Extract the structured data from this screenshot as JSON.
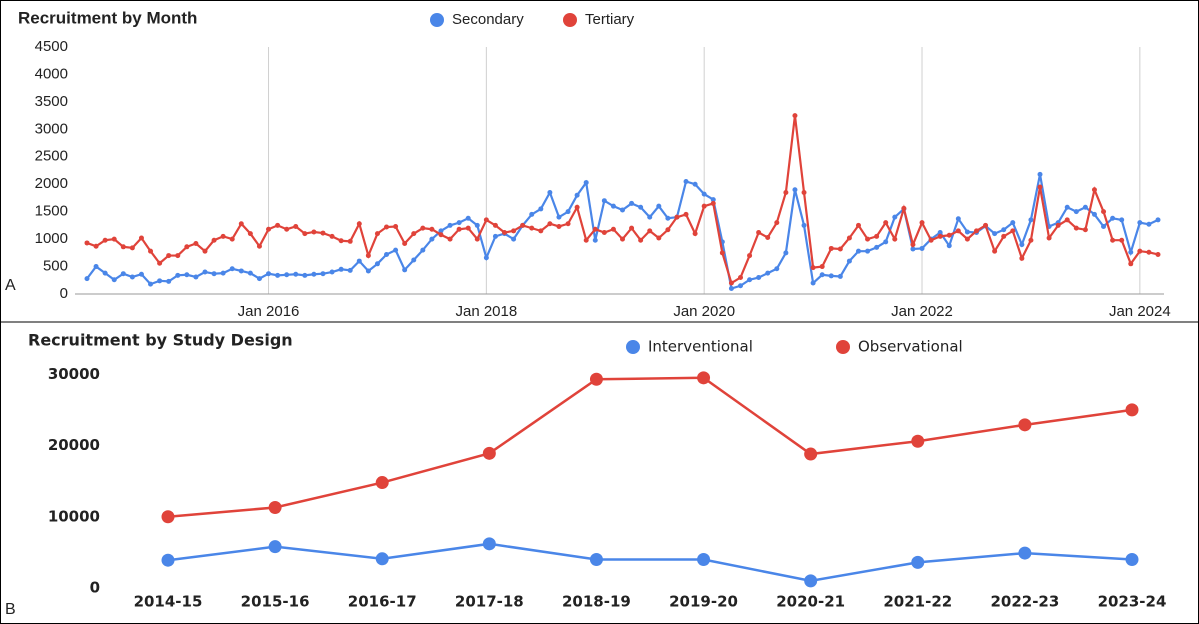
{
  "chart_data": [
    {
      "type": "line",
      "panel_label": "A",
      "title": "Recruitment by Month",
      "x": [
        "2014-05",
        "2014-06",
        "2014-07",
        "2014-08",
        "2014-09",
        "2014-10",
        "2014-11",
        "2014-12",
        "2015-01",
        "2015-02",
        "2015-03",
        "2015-04",
        "2015-05",
        "2015-06",
        "2015-07",
        "2015-08",
        "2015-09",
        "2015-10",
        "2015-11",
        "2015-12",
        "2016-01",
        "2016-02",
        "2016-03",
        "2016-04",
        "2016-05",
        "2016-06",
        "2016-07",
        "2016-08",
        "2016-09",
        "2016-10",
        "2016-11",
        "2016-12",
        "2017-01",
        "2017-02",
        "2017-03",
        "2017-04",
        "2017-05",
        "2017-06",
        "2017-07",
        "2017-08",
        "2017-09",
        "2017-10",
        "2017-11",
        "2017-12",
        "2018-01",
        "2018-02",
        "2018-03",
        "2018-04",
        "2018-05",
        "2018-06",
        "2018-07",
        "2018-08",
        "2018-09",
        "2018-10",
        "2018-11",
        "2018-12",
        "2019-01",
        "2019-02",
        "2019-03",
        "2019-04",
        "2019-05",
        "2019-06",
        "2019-07",
        "2019-08",
        "2019-09",
        "2019-10",
        "2019-11",
        "2019-12",
        "2020-01",
        "2020-02",
        "2020-03",
        "2020-04",
        "2020-05",
        "2020-06",
        "2020-07",
        "2020-08",
        "2020-09",
        "2020-10",
        "2020-11",
        "2020-12",
        "2021-01",
        "2021-02",
        "2021-03",
        "2021-04",
        "2021-05",
        "2021-06",
        "2021-07",
        "2021-08",
        "2021-09",
        "2021-10",
        "2021-11",
        "2021-12",
        "2022-01",
        "2022-02",
        "2022-03",
        "2022-04",
        "2022-05",
        "2022-06",
        "2022-07",
        "2022-08",
        "2022-09",
        "2022-10",
        "2022-11",
        "2022-12",
        "2023-01",
        "2023-02",
        "2023-03",
        "2023-04",
        "2023-05",
        "2023-06",
        "2023-07",
        "2023-08",
        "2023-09",
        "2023-10",
        "2023-11",
        "2023-12",
        "2024-01",
        "2024-02",
        "2024-03"
      ],
      "series": [
        {
          "name": "Secondary",
          "color": "#4a86e8",
          "values": [
            280,
            500,
            380,
            260,
            370,
            310,
            360,
            180,
            240,
            230,
            340,
            350,
            310,
            400,
            370,
            380,
            460,
            420,
            380,
            280,
            370,
            340,
            350,
            360,
            340,
            360,
            370,
            400,
            450,
            430,
            600,
            420,
            550,
            720,
            800,
            440,
            620,
            800,
            1000,
            1150,
            1250,
            1300,
            1380,
            1250,
            660,
            1050,
            1100,
            1000,
            1250,
            1450,
            1550,
            1850,
            1400,
            1500,
            1800,
            2030,
            980,
            1700,
            1600,
            1530,
            1650,
            1580,
            1400,
            1600,
            1380,
            1400,
            2050,
            2000,
            1820,
            1720,
            950,
            100,
            150,
            260,
            300,
            380,
            460,
            750,
            1900,
            1250,
            200,
            350,
            330,
            320,
            600,
            780,
            780,
            850,
            950,
            1400,
            1550,
            820,
            830,
            1000,
            1120,
            880,
            1370,
            1130,
            1120,
            1240,
            1100,
            1170,
            1300,
            900,
            1350,
            2180,
            1230,
            1300,
            1580,
            1500,
            1580,
            1450,
            1230,
            1380,
            1350,
            760,
            1300,
            1270,
            1350
          ]
        },
        {
          "name": "Tertiary",
          "color": "#e0433a",
          "values": [
            930,
            870,
            980,
            1000,
            860,
            840,
            1020,
            780,
            560,
            700,
            700,
            860,
            920,
            780,
            980,
            1050,
            1000,
            1280,
            1100,
            870,
            1180,
            1250,
            1180,
            1230,
            1100,
            1130,
            1110,
            1050,
            970,
            960,
            1280,
            700,
            1100,
            1220,
            1230,
            920,
            1100,
            1200,
            1180,
            1080,
            1000,
            1180,
            1200,
            1000,
            1350,
            1250,
            1120,
            1150,
            1250,
            1200,
            1150,
            1280,
            1230,
            1280,
            1580,
            980,
            1180,
            1120,
            1180,
            1000,
            1200,
            980,
            1150,
            1020,
            1170,
            1400,
            1450,
            1100,
            1600,
            1650,
            750,
            200,
            300,
            700,
            1120,
            1030,
            1300,
            1850,
            3250,
            1850,
            480,
            500,
            830,
            820,
            1020,
            1250,
            1000,
            1050,
            1300,
            1000,
            1560,
            900,
            1300,
            980,
            1050,
            1070,
            1150,
            1000,
            1150,
            1250,
            780,
            1050,
            1150,
            650,
            980,
            1950,
            1020,
            1250,
            1350,
            1200,
            1170,
            1900,
            1500,
            980,
            980,
            550,
            780,
            760,
            720
          ]
        }
      ],
      "xlim": [
        "2014-05",
        "2024-03"
      ],
      "xticks": [
        {
          "value": "2016-01",
          "label": "Jan 2016"
        },
        {
          "value": "2018-01",
          "label": "Jan 2018"
        },
        {
          "value": "2020-01",
          "label": "Jan 2020"
        },
        {
          "value": "2022-01",
          "label": "Jan 2022"
        },
        {
          "value": "2024-01",
          "label": "Jan 2024"
        }
      ],
      "ylim": [
        0,
        4500
      ],
      "yticks": [
        0,
        500,
        1000,
        1500,
        2000,
        2500,
        3000,
        3500,
        4000,
        4500
      ],
      "grid": true
    },
    {
      "type": "line",
      "panel_label": "B",
      "title": "Recruitment by Study Design",
      "categories": [
        "2014-15",
        "2015-16",
        "2016-17",
        "2017-18",
        "2018-19",
        "2019-20",
        "2020-21",
        "2021-22",
        "2022-23",
        "2023-24"
      ],
      "series": [
        {
          "name": "Interventional",
          "color": "#4a86e8",
          "values": [
            3900,
            5800,
            4100,
            6200,
            4000,
            4000,
            1000,
            3600,
            4900,
            4000
          ]
        },
        {
          "name": "Observational",
          "color": "#e0433a",
          "values": [
            10000,
            11300,
            14800,
            18900,
            29300,
            29500,
            18800,
            20600,
            22900,
            25000
          ]
        }
      ],
      "ylim": [
        0,
        32000
      ],
      "yticks": [
        0,
        10000,
        20000,
        30000
      ],
      "grid": false
    }
  ]
}
